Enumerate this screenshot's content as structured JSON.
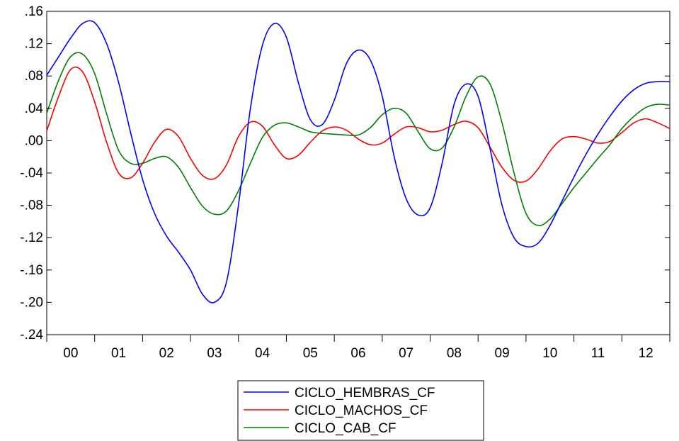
{
  "chart_data": {
    "type": "line",
    "title": "",
    "xlabel": "",
    "ylabel": "",
    "ylim": [
      -0.24,
      0.16
    ],
    "xlim": [
      2000.0,
      2013.0
    ],
    "grid": false,
    "legend_position": "bottom-center",
    "y_ticks": [
      {
        "value": 0.16,
        "label": ".16"
      },
      {
        "value": 0.12,
        "label": ".12"
      },
      {
        "value": 0.08,
        "label": ".08"
      },
      {
        "value": 0.04,
        "label": ".04"
      },
      {
        "value": 0.0,
        "label": ".00"
      },
      {
        "value": -0.04,
        "label": "-.04"
      },
      {
        "value": -0.08,
        "label": "-.08"
      },
      {
        "value": -0.12,
        "label": "-.12"
      },
      {
        "value": -0.16,
        "label": "-.16"
      },
      {
        "value": -0.2,
        "label": "-.20"
      },
      {
        "value": -0.24,
        "label": "-.24"
      }
    ],
    "categories": [
      "00",
      "01",
      "02",
      "03",
      "04",
      "05",
      "06",
      "07",
      "08",
      "09",
      "10",
      "11",
      "12"
    ],
    "series": [
      {
        "name": "CICLO_HEMBRAS_CF",
        "color": "#0000ff",
        "x": [
          2000.0,
          2000.25,
          2000.5,
          2000.75,
          2001.0,
          2001.25,
          2001.5,
          2001.75,
          2002.0,
          2002.25,
          2002.5,
          2002.75,
          2003.0,
          2003.25,
          2003.5,
          2003.75,
          2004.0,
          2004.25,
          2004.5,
          2004.75,
          2005.0,
          2005.25,
          2005.5,
          2005.75,
          2006.0,
          2006.25,
          2006.5,
          2006.75,
          2007.0,
          2007.25,
          2007.5,
          2007.75,
          2008.0,
          2008.25,
          2008.5,
          2008.75,
          2009.0,
          2009.25,
          2009.5,
          2009.75,
          2010.0,
          2010.25,
          2010.5,
          2010.75,
          2011.0,
          2011.25,
          2011.5,
          2011.75,
          2012.0,
          2012.25,
          2012.5,
          2012.75,
          2013.0
        ],
        "y": [
          0.081,
          0.104,
          0.127,
          0.145,
          0.146,
          0.12,
          0.072,
          0.01,
          -0.048,
          -0.09,
          -0.118,
          -0.138,
          -0.16,
          -0.19,
          -0.2,
          -0.175,
          -0.08,
          0.04,
          0.118,
          0.145,
          0.128,
          0.072,
          0.026,
          0.02,
          0.05,
          0.095,
          0.112,
          0.1,
          0.055,
          -0.02,
          -0.072,
          -0.092,
          -0.083,
          -0.028,
          0.045,
          0.07,
          0.055,
          -0.01,
          -0.08,
          -0.12,
          -0.131,
          -0.127,
          -0.105,
          -0.075,
          -0.045,
          -0.017,
          0.008,
          0.03,
          0.049,
          0.063,
          0.071,
          0.073,
          0.073
        ]
      },
      {
        "name": "CICLO_MACHOS_CF",
        "color": "#ff0000",
        "x": [
          2000.0,
          2000.25,
          2000.5,
          2000.75,
          2001.0,
          2001.25,
          2001.5,
          2001.75,
          2002.0,
          2002.25,
          2002.5,
          2002.75,
          2003.0,
          2003.25,
          2003.5,
          2003.75,
          2004.0,
          2004.25,
          2004.5,
          2004.75,
          2005.0,
          2005.25,
          2005.5,
          2005.75,
          2006.0,
          2006.25,
          2006.5,
          2006.75,
          2007.0,
          2007.25,
          2007.5,
          2007.75,
          2008.0,
          2008.25,
          2008.5,
          2008.75,
          2009.0,
          2009.25,
          2009.5,
          2009.75,
          2010.0,
          2010.25,
          2010.5,
          2010.75,
          2011.0,
          2011.25,
          2011.5,
          2011.75,
          2012.0,
          2012.25,
          2012.5,
          2012.75,
          2013.0
        ],
        "y": [
          0.012,
          0.055,
          0.088,
          0.085,
          0.048,
          -0.002,
          -0.04,
          -0.046,
          -0.028,
          -0.002,
          0.014,
          0.005,
          -0.022,
          -0.043,
          -0.047,
          -0.03,
          0.005,
          0.023,
          0.018,
          -0.005,
          -0.022,
          -0.018,
          -0.002,
          0.012,
          0.017,
          0.013,
          0.002,
          -0.005,
          -0.003,
          0.008,
          0.017,
          0.016,
          0.011,
          0.013,
          0.02,
          0.024,
          0.016,
          -0.008,
          -0.033,
          -0.049,
          -0.05,
          -0.035,
          -0.013,
          0.002,
          0.005,
          0.002,
          -0.003,
          -0.001,
          0.01,
          0.022,
          0.027,
          0.022,
          0.015
        ]
      },
      {
        "name": "CICLO_CAB_CF",
        "color": "#008000",
        "x": [
          2000.0,
          2000.25,
          2000.5,
          2000.75,
          2001.0,
          2001.25,
          2001.5,
          2001.75,
          2002.0,
          2002.25,
          2002.5,
          2002.75,
          2003.0,
          2003.25,
          2003.5,
          2003.75,
          2004.0,
          2004.25,
          2004.5,
          2004.75,
          2005.0,
          2005.25,
          2005.5,
          2005.75,
          2006.0,
          2006.25,
          2006.5,
          2006.75,
          2007.0,
          2007.25,
          2007.5,
          2007.75,
          2008.0,
          2008.25,
          2008.5,
          2008.75,
          2009.0,
          2009.25,
          2009.5,
          2009.75,
          2010.0,
          2010.25,
          2010.5,
          2010.75,
          2011.0,
          2011.25,
          2011.5,
          2011.75,
          2012.0,
          2012.25,
          2012.5,
          2012.75,
          2013.0
        ],
        "y": [
          0.034,
          0.075,
          0.104,
          0.107,
          0.083,
          0.033,
          -0.012,
          -0.028,
          -0.028,
          -0.022,
          -0.02,
          -0.033,
          -0.058,
          -0.081,
          -0.091,
          -0.087,
          -0.062,
          -0.028,
          0.004,
          0.019,
          0.022,
          0.017,
          0.011,
          0.009,
          0.008,
          0.007,
          0.007,
          0.016,
          0.032,
          0.04,
          0.034,
          0.011,
          -0.01,
          -0.009,
          0.017,
          0.055,
          0.079,
          0.07,
          0.022,
          -0.04,
          -0.09,
          -0.105,
          -0.097,
          -0.078,
          -0.058,
          -0.04,
          -0.022,
          -0.005,
          0.015,
          0.03,
          0.041,
          0.045,
          0.044
        ]
      }
    ]
  }
}
